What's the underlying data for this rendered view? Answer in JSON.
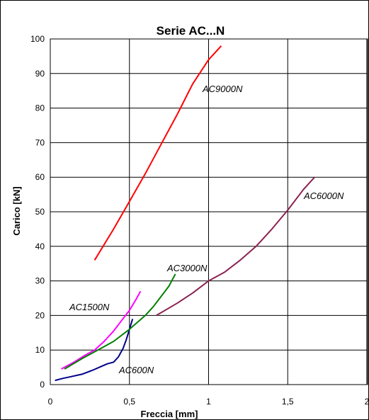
{
  "chart_data": {
    "type": "line",
    "title": "Serie AC...N",
    "xlabel": "Freccia [mm]",
    "ylabel": "Carico [kN]",
    "xlim": [
      0,
      2
    ],
    "ylim": [
      0,
      100
    ],
    "x_ticks": [
      "0",
      "0,5",
      "1",
      "1,5",
      "2"
    ],
    "y_ticks": [
      "0",
      "10",
      "20",
      "30",
      "40",
      "50",
      "60",
      "70",
      "80",
      "90",
      "100"
    ],
    "grid": true,
    "legend": "none",
    "series": [
      {
        "name": "AC600N",
        "color": "#00008b",
        "x": [
          0.03,
          0.08,
          0.12,
          0.2,
          0.27,
          0.32,
          0.36,
          0.4,
          0.43,
          0.46,
          0.48,
          0.5,
          0.52
        ],
        "y": [
          1.2,
          1.8,
          2.2,
          3.0,
          4.2,
          5.2,
          6.0,
          6.5,
          8.0,
          10.5,
          13.0,
          16.0,
          19.0
        ]
      },
      {
        "name": "AC1500N",
        "color": "#ff00ff",
        "x": [
          0.07,
          0.15,
          0.22,
          0.28,
          0.34,
          0.4,
          0.45,
          0.5,
          0.54,
          0.57
        ],
        "y": [
          4.5,
          6.5,
          8.5,
          10.0,
          12.5,
          15.5,
          18.5,
          21.5,
          24.5,
          27.0
        ]
      },
      {
        "name": "AC3000N",
        "color": "#008000",
        "x": [
          0.09,
          0.2,
          0.3,
          0.4,
          0.5,
          0.6,
          0.65,
          0.7,
          0.75,
          0.79
        ],
        "y": [
          4.5,
          7.5,
          10.0,
          12.5,
          16.0,
          20.0,
          22.5,
          25.5,
          28.5,
          32.0
        ]
      },
      {
        "name": "AC6000N",
        "color": "#8b2252",
        "x": [
          0.67,
          0.8,
          0.9,
          1.0,
          1.1,
          1.2,
          1.3,
          1.4,
          1.5,
          1.6,
          1.67
        ],
        "y": [
          20.0,
          23.5,
          26.5,
          30.0,
          32.5,
          36.0,
          40.0,
          45.0,
          50.5,
          56.5,
          60.0
        ]
      },
      {
        "name": "AC9000N",
        "color": "#ff0000",
        "x": [
          0.28,
          0.4,
          0.5,
          0.6,
          0.7,
          0.8,
          0.9,
          1.0,
          1.08
        ],
        "y": [
          36.0,
          45.0,
          53.0,
          61.0,
          69.5,
          78.0,
          87.0,
          94.0,
          98.0
        ]
      }
    ]
  }
}
